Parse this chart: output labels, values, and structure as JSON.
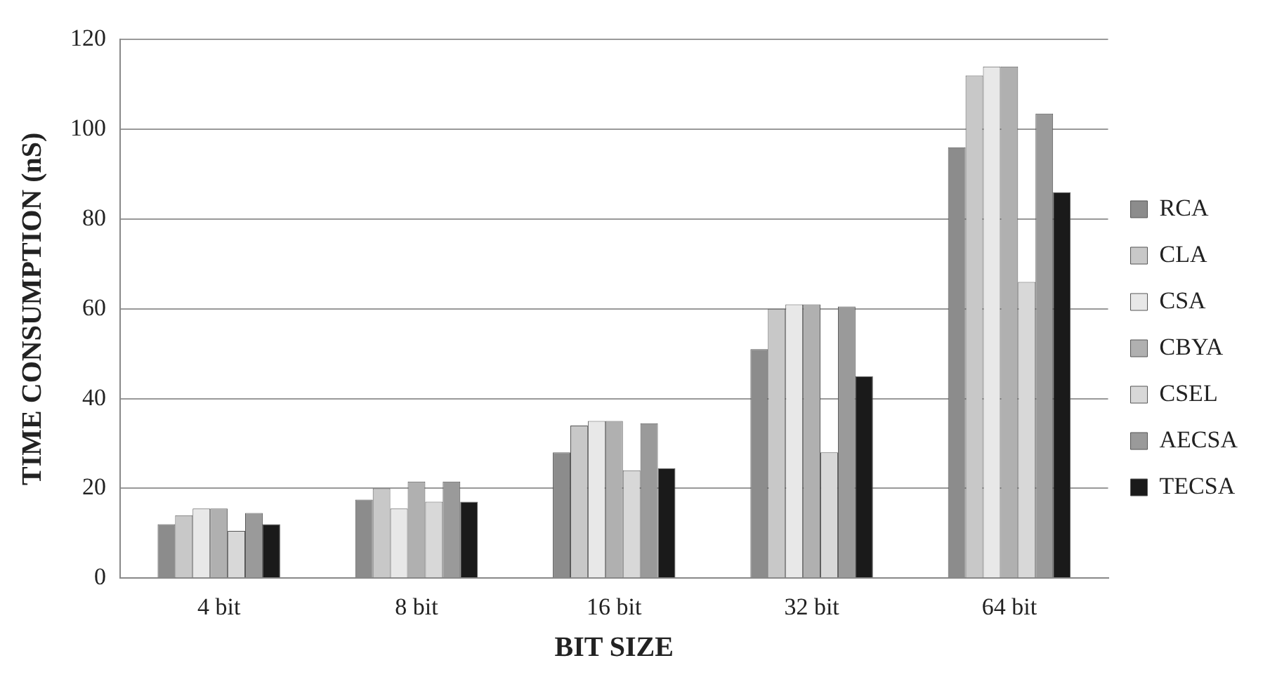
{
  "chart_data": {
    "type": "bar",
    "xlabel": "BIT SIZE",
    "ylabel": "TIME CONSUMPTION (nS)",
    "categories": [
      "4 bit",
      "8 bit",
      "16 bit",
      "32 bit",
      "64 bit"
    ],
    "series": [
      {
        "name": "RCA",
        "color": "#8c8c8c",
        "values": [
          12,
          17.5,
          28,
          51,
          96
        ]
      },
      {
        "name": "CLA",
        "color": "#c8c8c8",
        "values": [
          14,
          20,
          34,
          60,
          112
        ]
      },
      {
        "name": "CSA",
        "color": "#e8e8e8",
        "values": [
          15.5,
          15.5,
          35,
          61,
          114
        ]
      },
      {
        "name": "CBYA",
        "color": "#b0b0b0",
        "values": [
          15.5,
          21.5,
          35,
          61,
          114
        ]
      },
      {
        "name": "CSEL",
        "color": "#d8d8d8",
        "values": [
          10.5,
          17,
          24,
          28,
          66
        ]
      },
      {
        "name": "AECSA",
        "color": "#9a9a9a",
        "values": [
          14.5,
          21.5,
          34.5,
          60.5,
          103.5
        ]
      },
      {
        "name": "TECSA",
        "color": "#1a1a1a",
        "values": [
          12,
          17,
          24.5,
          45,
          86
        ]
      }
    ],
    "ylim": [
      0,
      120
    ],
    "yticks": [
      0,
      20,
      40,
      60,
      80,
      100,
      120
    ],
    "grid": "y",
    "legend": "right"
  }
}
